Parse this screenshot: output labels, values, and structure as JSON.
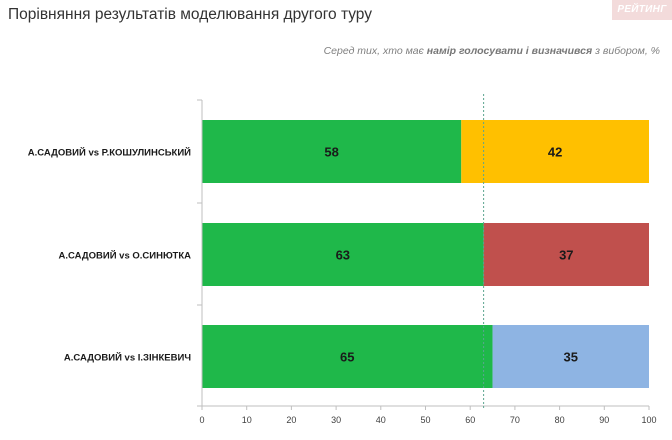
{
  "header": {
    "title": "Порівняння результатів моделювання другого туру",
    "subtitle_pre": "Серед тих, хто має ",
    "subtitle_bold": "намір голосувати і визначився",
    "subtitle_post": " з вибором, %",
    "logo_text": "РЕЙТИНГ"
  },
  "colors": {
    "sadovyi": "#1fb84a",
    "kosholynskyi": "#ffc000",
    "syniutka": "#c0504d",
    "zinkevych": "#8eb4e3",
    "axis": "#bfbfbf",
    "reference_line": "#5aa58f"
  },
  "chart_data": {
    "type": "bar",
    "orientation": "horizontal",
    "stacked": true,
    "categories": [
      "А.САДОВИЙ vs Р.КОШУЛИНСЬКИЙ",
      "А.САДОВИЙ vs О.СИНЮТКА",
      "А.САДОВИЙ vs І.ЗІНКЕВИЧ"
    ],
    "series": [
      {
        "values": [
          58,
          63,
          65
        ],
        "colors": [
          "#1fb84a",
          "#1fb84a",
          "#1fb84a"
        ]
      },
      {
        "values": [
          42,
          37,
          35
        ],
        "colors": [
          "#ffc000",
          "#c0504d",
          "#8eb4e3"
        ]
      }
    ],
    "xlim": [
      0,
      100
    ],
    "xticks": [
      0,
      10,
      20,
      30,
      40,
      50,
      60,
      70,
      80,
      90,
      100
    ],
    "reference_line_x": 63,
    "grid": false,
    "legend": "none"
  }
}
